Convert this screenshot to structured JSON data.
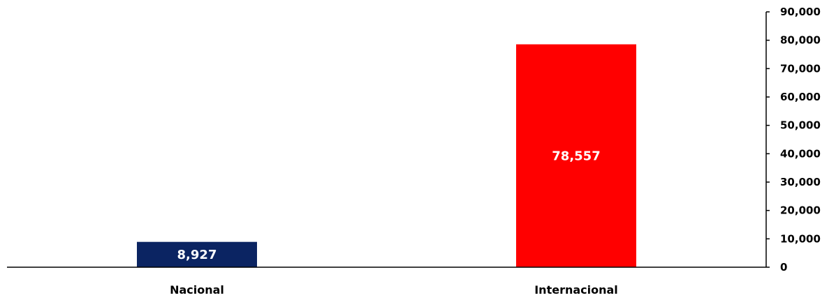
{
  "chart_data": {
    "type": "bar",
    "categories": [
      "Nacional",
      "Internacional"
    ],
    "values": [
      8927,
      78557
    ],
    "value_labels": [
      "8,927",
      "78,557"
    ],
    "colors": [
      "#0b2462",
      "#ff0000"
    ],
    "title": "",
    "xlabel": "",
    "ylabel": "",
    "ylim": [
      0,
      90000
    ],
    "yticks": [
      0,
      10000,
      20000,
      30000,
      40000,
      50000,
      60000,
      70000,
      80000,
      90000
    ],
    "ytick_labels": [
      "0",
      "10,000",
      "20,000",
      "30,000",
      "40,000",
      "50,000",
      "60,000",
      "70,000",
      "80,000",
      "90,000"
    ],
    "y_axis_side": "right",
    "grid": false,
    "legend": false
  }
}
